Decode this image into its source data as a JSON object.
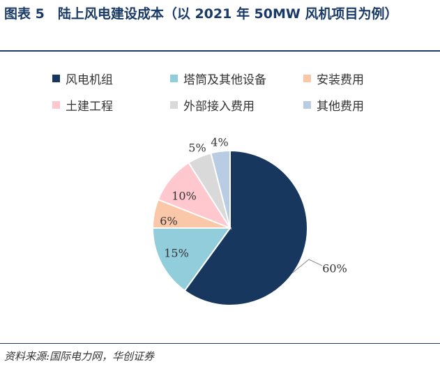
{
  "title": "图表 5　陆上风电建设成本（以 2021 年 50MW 风机项目为例）",
  "source": "资料来源:国际电力网，华创证券",
  "chart_data": {
    "type": "pie",
    "start_angle_deg": 0,
    "direction": "clockwise",
    "slices": [
      {
        "label": "风电机组",
        "value": 60,
        "display": "60%",
        "color": "#17375e"
      },
      {
        "label": "塔筒及其他设备",
        "value": 15,
        "display": "15%",
        "color": "#92cddc"
      },
      {
        "label": "安装费用",
        "value": 6,
        "display": "6%",
        "color": "#fac8a8"
      },
      {
        "label": "土建工程",
        "value": 10,
        "display": "10%",
        "color": "#ffc7ce"
      },
      {
        "label": "外部接入费用",
        "value": 5,
        "display": "5%",
        "color": "#d9d9d9"
      },
      {
        "label": "其他费用",
        "value": 4,
        "display": "4%",
        "color": "#b8cce4"
      }
    ],
    "legend_position": "top"
  }
}
